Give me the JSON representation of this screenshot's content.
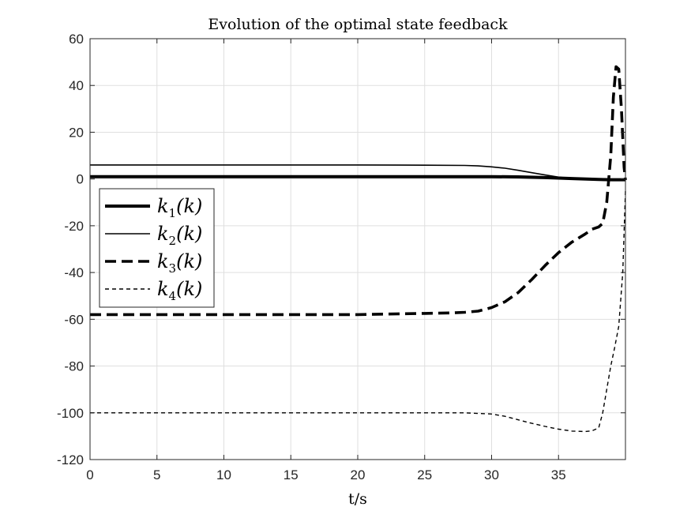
{
  "chart_data": {
    "type": "line",
    "title": "Evolution of the optimal state feedback",
    "xlabel": "t/s",
    "ylabel": "",
    "xlim": [
      0,
      40
    ],
    "ylim": [
      -120,
      60
    ],
    "xticks": [
      0,
      5,
      10,
      15,
      20,
      25,
      30,
      35
    ],
    "yticks": [
      60,
      40,
      20,
      0,
      -20,
      -40,
      -60,
      -80,
      -100,
      -120
    ],
    "grid": true,
    "legend_position": "left",
    "series": [
      {
        "name": "k1(k)",
        "name_base": "k",
        "name_sub": "1",
        "name_arg": "(k)",
        "style": "solid-thick",
        "color": "#000000",
        "x": [
          0,
          5,
          10,
          15,
          20,
          25,
          28,
          30,
          32,
          34,
          36,
          38,
          39,
          39.5,
          40
        ],
        "y": [
          1,
          1,
          1,
          1,
          1,
          1,
          1,
          1,
          0.9,
          0.6,
          0.2,
          -0.2,
          -0.3,
          -0.3,
          -0.3
        ]
      },
      {
        "name": "k2(k)",
        "name_base": "k",
        "name_sub": "2",
        "name_arg": "(k)",
        "style": "solid-thin",
        "color": "#000000",
        "x": [
          0,
          5,
          10,
          15,
          20,
          25,
          28,
          29,
          30,
          31,
          32,
          33,
          34,
          35,
          36,
          37,
          38,
          39,
          40
        ],
        "y": [
          6,
          6,
          6,
          6,
          6,
          5.9,
          5.8,
          5.6,
          5.2,
          4.6,
          3.7,
          2.7,
          1.7,
          0.8,
          0.2,
          -0.2,
          -0.3,
          -0.3,
          -0.3
        ]
      },
      {
        "name": "k3(k)",
        "name_base": "k",
        "name_sub": "3",
        "name_arg": "(k)",
        "style": "dashed-thick",
        "color": "#000000",
        "x": [
          0,
          5,
          10,
          15,
          20,
          25,
          27,
          28,
          29,
          30,
          31,
          32,
          33,
          34,
          35,
          36,
          37,
          37.5,
          38,
          38.3,
          38.6,
          38.9,
          39.1,
          39.3,
          39.5,
          39.7,
          39.9,
          40
        ],
        "y": [
          -58,
          -58,
          -58,
          -58,
          -58,
          -57.5,
          -57.3,
          -57,
          -56.5,
          -55,
          -52.5,
          -48.5,
          -43,
          -37,
          -31.5,
          -27,
          -23.5,
          -21.5,
          -20.5,
          -19,
          -10,
          10,
          35,
          48,
          47,
          30,
          5,
          -0.5
        ]
      },
      {
        "name": "k4(k)",
        "name_base": "k",
        "name_sub": "4",
        "name_arg": "(k)",
        "style": "dashed-thin",
        "color": "#000000",
        "x": [
          0,
          5,
          10,
          15,
          20,
          25,
          28,
          30,
          31,
          32,
          33,
          34,
          35,
          36,
          37,
          37.5,
          38,
          38.3,
          38.6,
          38.9,
          39.2,
          39.5,
          39.8,
          40
        ],
        "y": [
          -100,
          -100,
          -100,
          -100,
          -100,
          -100,
          -100,
          -100.5,
          -101.5,
          -103,
          -104.5,
          -105.8,
          -107,
          -107.8,
          -108,
          -107.7,
          -106.5,
          -100,
          -90,
          -80,
          -72,
          -63,
          -40,
          -5
        ]
      }
    ]
  }
}
